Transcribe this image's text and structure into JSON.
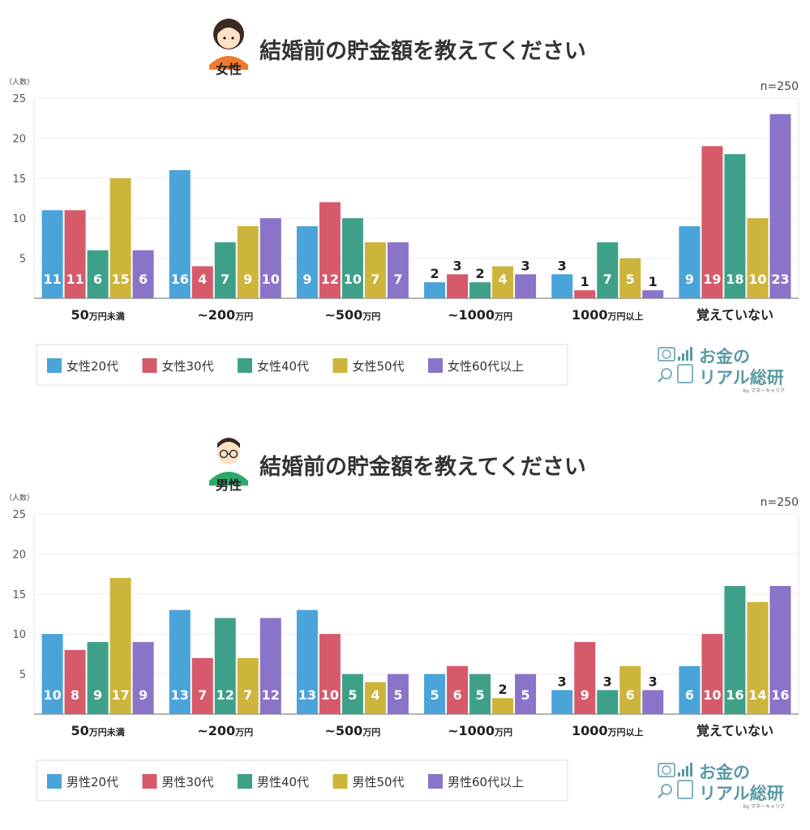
{
  "panels": [
    {
      "id": "female",
      "gender_label": "女性",
      "title": "結婚前の貯金額を教えてください",
      "y_unit": "（人数）",
      "n_label": "n=250",
      "logo": {
        "line1": "お金の",
        "line2": "リアル総研",
        "sub": "by マネーキャリア"
      },
      "chart_data": {
        "type": "bar",
        "ylim": [
          0,
          25
        ],
        "yticks": [
          5,
          10,
          15,
          20,
          25
        ],
        "grid": true,
        "legend": "bottom-left",
        "categories": [
          {
            "num": "50",
            "suffix": "万円未満"
          },
          {
            "num": "~200",
            "suffix": "万円"
          },
          {
            "num": "~500",
            "suffix": "万円"
          },
          {
            "num": "~1000",
            "suffix": "万円"
          },
          {
            "num": "1000",
            "suffix": "万円以上"
          },
          {
            "num": "",
            "suffix": "覚えていない"
          }
        ],
        "series": [
          {
            "name": "女性20代",
            "color": "#4aa3d9",
            "values": [
              11,
              16,
              9,
              2,
              3,
              9
            ]
          },
          {
            "name": "女性30代",
            "color": "#d65a6a",
            "values": [
              11,
              4,
              12,
              3,
              1,
              19
            ]
          },
          {
            "name": "女性40代",
            "color": "#3fa08a",
            "values": [
              6,
              7,
              10,
              2,
              7,
              18
            ]
          },
          {
            "name": "女性50代",
            "color": "#cdb43a",
            "values": [
              15,
              9,
              7,
              4,
              5,
              10
            ]
          },
          {
            "name": "女性60代以上",
            "color": "#8a74c9",
            "values": [
              6,
              10,
              7,
              3,
              1,
              23
            ]
          }
        ]
      }
    },
    {
      "id": "male",
      "gender_label": "男性",
      "title": "結婚前の貯金額を教えてください",
      "y_unit": "（人数）",
      "n_label": "n=250",
      "logo": {
        "line1": "お金の",
        "line2": "リアル総研",
        "sub": "by マネーキャリア"
      },
      "chart_data": {
        "type": "bar",
        "ylim": [
          0,
          25
        ],
        "yticks": [
          5,
          10,
          15,
          20,
          25
        ],
        "grid": true,
        "legend": "bottom-left",
        "categories": [
          {
            "num": "50",
            "suffix": "万円未満"
          },
          {
            "num": "~200",
            "suffix": "万円"
          },
          {
            "num": "~500",
            "suffix": "万円"
          },
          {
            "num": "~1000",
            "suffix": "万円"
          },
          {
            "num": "1000",
            "suffix": "万円以上"
          },
          {
            "num": "",
            "suffix": "覚えていない"
          }
        ],
        "series": [
          {
            "name": "男性20代",
            "color": "#4aa3d9",
            "values": [
              10,
              13,
              13,
              5,
              3,
              6
            ]
          },
          {
            "name": "男性30代",
            "color": "#d65a6a",
            "values": [
              8,
              7,
              10,
              6,
              9,
              10
            ]
          },
          {
            "name": "男性40代",
            "color": "#3fa08a",
            "values": [
              9,
              12,
              5,
              5,
              3,
              16
            ]
          },
          {
            "name": "男性50代",
            "color": "#cdb43a",
            "values": [
              17,
              7,
              4,
              2,
              6,
              14
            ]
          },
          {
            "name": "男性60代以上",
            "color": "#8a74c9",
            "values": [
              9,
              12,
              5,
              5,
              3,
              16
            ]
          }
        ]
      }
    }
  ]
}
